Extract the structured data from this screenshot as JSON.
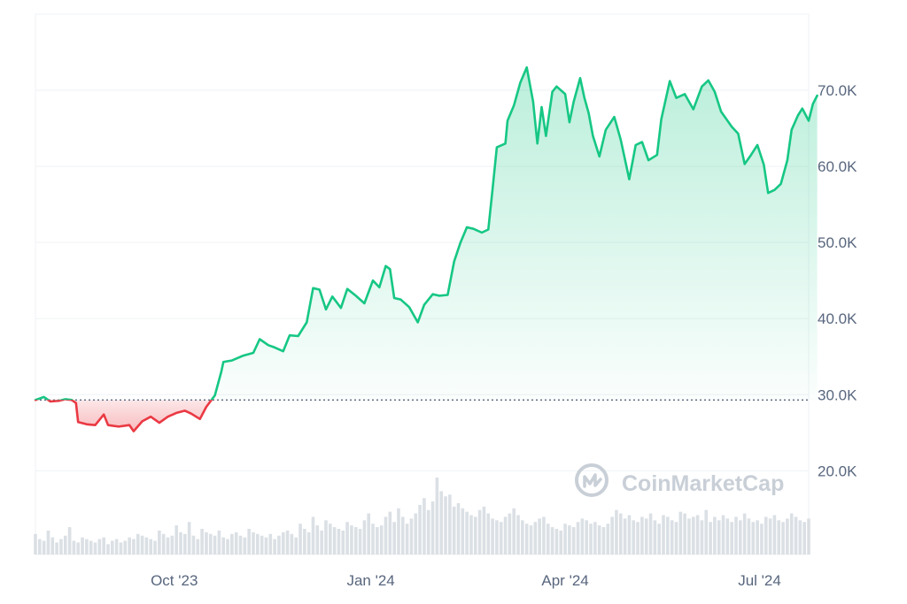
{
  "watermark": {
    "text": "CoinMarketCap",
    "icon": "coinmarketcap-logo-icon"
  },
  "colors": {
    "up_line": "#16c784",
    "down_line": "#ea3943",
    "up_fill": "#16c784",
    "down_fill": "#ea3943",
    "grid": "#eff2f5",
    "baseline": "#58667e",
    "volume": "#d5dae1",
    "axis_text": "#58667e"
  },
  "chart_data": {
    "type": "area",
    "title": "",
    "xlabel": "",
    "ylabel": "",
    "baseline_value": 29300,
    "ylim": [
      9000,
      80000
    ],
    "xlim": [
      "2023-07-28",
      "2024-07-24"
    ],
    "y_ticks": [
      {
        "value": 70000,
        "label": "70.0K"
      },
      {
        "value": 60000,
        "label": "60.0K"
      },
      {
        "value": 50000,
        "label": "50.0K"
      },
      {
        "value": 40000,
        "label": "40.0K"
      },
      {
        "value": 30000,
        "label": "30.0K"
      },
      {
        "value": 20000,
        "label": "20.0K"
      }
    ],
    "x_ticks": [
      {
        "date": "2023-10-01",
        "label": "Oct '23"
      },
      {
        "date": "2024-01-01",
        "label": "Jan '24"
      },
      {
        "date": "2024-04-01",
        "label": "Apr '24"
      },
      {
        "date": "2024-07-01",
        "label": "Jul '24"
      }
    ],
    "grid": true,
    "price_series": [
      [
        "2023-07-28",
        29300
      ],
      [
        "2023-08-01",
        29700
      ],
      [
        "2023-08-04",
        29100
      ],
      [
        "2023-08-08",
        29200
      ],
      [
        "2023-08-11",
        29400
      ],
      [
        "2023-08-14",
        29300
      ],
      [
        "2023-08-16",
        28900
      ],
      [
        "2023-08-17",
        26400
      ],
      [
        "2023-08-21",
        26100
      ],
      [
        "2023-08-25",
        26000
      ],
      [
        "2023-08-29",
        27400
      ],
      [
        "2023-08-31",
        26000
      ],
      [
        "2023-09-05",
        25800
      ],
      [
        "2023-09-10",
        26000
      ],
      [
        "2023-09-12",
        25200
      ],
      [
        "2023-09-16",
        26500
      ],
      [
        "2023-09-20",
        27100
      ],
      [
        "2023-09-24",
        26300
      ],
      [
        "2023-09-28",
        27100
      ],
      [
        "2023-10-02",
        27600
      ],
      [
        "2023-10-06",
        27900
      ],
      [
        "2023-10-09",
        27500
      ],
      [
        "2023-10-13",
        26800
      ],
      [
        "2023-10-16",
        28400
      ],
      [
        "2023-10-20",
        29900
      ],
      [
        "2023-10-23",
        33000
      ],
      [
        "2023-10-24",
        34300
      ],
      [
        "2023-10-28",
        34500
      ],
      [
        "2023-11-02",
        35100
      ],
      [
        "2023-11-07",
        35500
      ],
      [
        "2023-11-10",
        37300
      ],
      [
        "2023-11-14",
        36500
      ],
      [
        "2023-11-17",
        36200
      ],
      [
        "2023-11-21",
        35700
      ],
      [
        "2023-11-24",
        37800
      ],
      [
        "2023-11-28",
        37700
      ],
      [
        "2023-12-02",
        39500
      ],
      [
        "2023-12-05",
        44000
      ],
      [
        "2023-12-08",
        43800
      ],
      [
        "2023-12-11",
        41200
      ],
      [
        "2023-12-14",
        42900
      ],
      [
        "2023-12-18",
        41400
      ],
      [
        "2023-12-21",
        43900
      ],
      [
        "2023-12-25",
        43000
      ],
      [
        "2023-12-29",
        42000
      ],
      [
        "2024-01-02",
        45000
      ],
      [
        "2024-01-05",
        44100
      ],
      [
        "2024-01-08",
        46900
      ],
      [
        "2024-01-10",
        46500
      ],
      [
        "2024-01-12",
        42700
      ],
      [
        "2024-01-15",
        42500
      ],
      [
        "2024-01-19",
        41500
      ],
      [
        "2024-01-23",
        39500
      ],
      [
        "2024-01-26",
        41800
      ],
      [
        "2024-01-30",
        43200
      ],
      [
        "2024-02-02",
        43000
      ],
      [
        "2024-02-06",
        43100
      ],
      [
        "2024-02-09",
        47500
      ],
      [
        "2024-02-12",
        50000
      ],
      [
        "2024-02-15",
        52000
      ],
      [
        "2024-02-18",
        51800
      ],
      [
        "2024-02-22",
        51300
      ],
      [
        "2024-02-25",
        51700
      ],
      [
        "2024-02-27",
        57000
      ],
      [
        "2024-02-29",
        62500
      ],
      [
        "2024-03-04",
        63000
      ],
      [
        "2024-03-05",
        66000
      ],
      [
        "2024-03-08",
        68000
      ],
      [
        "2024-03-11",
        71000
      ],
      [
        "2024-03-14",
        73000
      ],
      [
        "2024-03-17",
        68500
      ],
      [
        "2024-03-19",
        63000
      ],
      [
        "2024-03-21",
        67800
      ],
      [
        "2024-03-23",
        64000
      ],
      [
        "2024-03-26",
        69800
      ],
      [
        "2024-03-28",
        70500
      ],
      [
        "2024-04-01",
        69500
      ],
      [
        "2024-04-03",
        65800
      ],
      [
        "2024-04-05",
        68500
      ],
      [
        "2024-04-08",
        71600
      ],
      [
        "2024-04-10",
        69000
      ],
      [
        "2024-04-12",
        67000
      ],
      [
        "2024-04-14",
        64000
      ],
      [
        "2024-04-17",
        61300
      ],
      [
        "2024-04-20",
        64800
      ],
      [
        "2024-04-24",
        66500
      ],
      [
        "2024-04-27",
        63500
      ],
      [
        "2024-05-01",
        58300
      ],
      [
        "2024-05-04",
        62800
      ],
      [
        "2024-05-07",
        63200
      ],
      [
        "2024-05-10",
        60800
      ],
      [
        "2024-05-14",
        61500
      ],
      [
        "2024-05-16",
        66200
      ],
      [
        "2024-05-20",
        71200
      ],
      [
        "2024-05-23",
        69000
      ],
      [
        "2024-05-27",
        69500
      ],
      [
        "2024-05-31",
        67500
      ],
      [
        "2024-06-04",
        70500
      ],
      [
        "2024-06-07",
        71300
      ],
      [
        "2024-06-10",
        69800
      ],
      [
        "2024-06-13",
        67200
      ],
      [
        "2024-06-18",
        65200
      ],
      [
        "2024-06-21",
        64300
      ],
      [
        "2024-06-24",
        60300
      ],
      [
        "2024-06-27",
        61500
      ],
      [
        "2024-06-30",
        62800
      ],
      [
        "2024-07-03",
        60200
      ],
      [
        "2024-07-05",
        56500
      ],
      [
        "2024-07-08",
        56900
      ],
      [
        "2024-07-11",
        57700
      ],
      [
        "2024-07-14",
        60800
      ],
      [
        "2024-07-16",
        64800
      ],
      [
        "2024-07-19",
        66700
      ],
      [
        "2024-07-21",
        67600
      ],
      [
        "2024-07-24",
        66000
      ],
      [
        "2024-07-26",
        68200
      ],
      [
        "2024-07-28",
        69300
      ]
    ],
    "volume_series": {
      "start": "2023-07-28",
      "step_days": 2,
      "values": [
        12,
        9,
        8,
        14,
        10,
        7,
        9,
        11,
        16,
        8,
        7,
        10,
        9,
        8,
        7,
        9,
        10,
        6,
        8,
        9,
        7,
        8,
        10,
        9,
        12,
        11,
        10,
        9,
        8,
        14,
        12,
        10,
        11,
        17,
        13,
        12,
        19,
        11,
        9,
        15,
        13,
        12,
        11,
        14,
        10,
        9,
        12,
        13,
        11,
        10,
        15,
        13,
        12,
        11,
        10,
        12,
        9,
        11,
        13,
        14,
        12,
        10,
        18,
        15,
        13,
        22,
        17,
        14,
        20,
        18,
        16,
        15,
        14,
        19,
        17,
        16,
        15,
        20,
        24,
        18,
        16,
        17,
        22,
        25,
        19,
        27,
        22,
        18,
        21,
        24,
        29,
        33,
        26,
        31,
        45,
        37,
        34,
        35,
        28,
        30,
        27,
        25,
        23,
        22,
        26,
        28,
        24,
        21,
        20,
        19,
        22,
        24,
        27,
        23,
        20,
        18,
        17,
        19,
        21,
        22,
        18,
        16,
        15,
        14,
        18,
        17,
        16,
        19,
        21,
        20,
        18,
        19,
        17,
        16,
        18,
        22,
        26,
        24,
        21,
        23,
        20,
        19,
        22,
        21,
        24,
        20,
        18,
        23,
        22,
        20,
        19,
        25,
        24,
        21,
        22,
        23,
        20,
        26,
        19,
        22,
        20,
        23,
        21,
        19,
        22,
        20,
        24,
        21,
        19,
        20,
        18,
        22,
        21,
        23,
        20,
        19,
        21,
        24,
        22,
        20,
        19,
        21,
        23,
        22
      ]
    }
  }
}
